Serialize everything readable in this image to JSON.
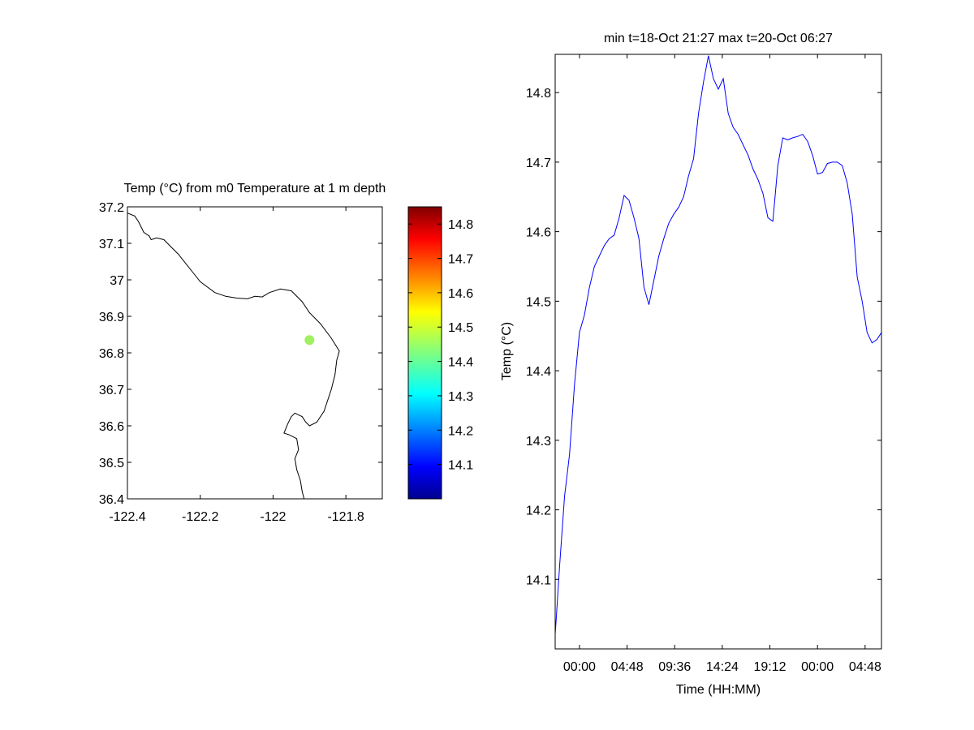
{
  "chart_data": [
    {
      "type": "map",
      "title": "Temp (°C) from m0 Temperature at 1 m depth",
      "xlabel": "",
      "ylabel": "",
      "xlim": [
        -122.4,
        -121.7
      ],
      "ylim": [
        36.4,
        37.2
      ],
      "x_ticks": [
        -122.4,
        -122.2,
        -122.0,
        -121.8
      ],
      "x_tick_labels": [
        "-122.4",
        "-122.2",
        "-122",
        "-121.8"
      ],
      "y_ticks": [
        36.4,
        36.5,
        36.6,
        36.7,
        36.8,
        36.9,
        37.0,
        37.1,
        37.2
      ],
      "y_tick_labels": [
        "36.4",
        "36.5",
        "36.6",
        "36.7",
        "36.8",
        "36.9",
        "37",
        "37.1",
        "37.2"
      ],
      "grid": false,
      "points": [
        {
          "lon": -121.9,
          "lat": 36.835,
          "value": 14.45,
          "color": "#a0f060"
        }
      ],
      "coastline": [
        [
          -122.4,
          37.183
        ],
        [
          -122.38,
          37.175
        ],
        [
          -122.37,
          37.16
        ],
        [
          -122.355,
          37.13
        ],
        [
          -122.34,
          37.12
        ],
        [
          -122.335,
          37.11
        ],
        [
          -122.32,
          37.115
        ],
        [
          -122.3,
          37.11
        ],
        [
          -122.28,
          37.09
        ],
        [
          -122.26,
          37.07
        ],
        [
          -122.24,
          37.045
        ],
        [
          -122.22,
          37.02
        ],
        [
          -122.2,
          36.995
        ],
        [
          -122.18,
          36.98
        ],
        [
          -122.16,
          36.965
        ],
        [
          -122.13,
          36.955
        ],
        [
          -122.1,
          36.95
        ],
        [
          -122.07,
          36.948
        ],
        [
          -122.05,
          36.955
        ],
        [
          -122.03,
          36.953
        ],
        [
          -122.01,
          36.965
        ],
        [
          -121.98,
          36.975
        ],
        [
          -121.95,
          36.97
        ],
        [
          -121.92,
          36.94
        ],
        [
          -121.9,
          36.91
        ],
        [
          -121.87,
          36.88
        ],
        [
          -121.84,
          36.84
        ],
        [
          -121.818,
          36.805
        ],
        [
          -121.825,
          36.78
        ],
        [
          -121.83,
          36.74
        ],
        [
          -121.84,
          36.7
        ],
        [
          -121.86,
          36.64
        ],
        [
          -121.88,
          36.61
        ],
        [
          -121.9,
          36.6
        ],
        [
          -121.91,
          36.61
        ],
        [
          -121.92,
          36.625
        ],
        [
          -121.94,
          36.635
        ],
        [
          -121.95,
          36.625
        ],
        [
          -121.96,
          36.605
        ],
        [
          -121.97,
          36.58
        ],
        [
          -121.955,
          36.575
        ],
        [
          -121.935,
          36.565
        ],
        [
          -121.93,
          36.535
        ],
        [
          -121.94,
          36.51
        ],
        [
          -121.935,
          36.48
        ],
        [
          -121.925,
          36.45
        ],
        [
          -121.92,
          36.42
        ],
        [
          -121.915,
          36.4
        ]
      ]
    },
    {
      "type": "colorbar",
      "min": 14.0,
      "max": 14.85,
      "ticks": [
        14.1,
        14.2,
        14.3,
        14.4,
        14.5,
        14.6,
        14.7,
        14.8
      ],
      "tick_labels": [
        "14.1",
        "14.2",
        "14.3",
        "14.4",
        "14.5",
        "14.6",
        "14.7",
        "14.8"
      ],
      "colormap": "jet"
    },
    {
      "type": "line",
      "title": "min t=18-Oct 21:27 max t=20-Oct 06:27",
      "xlabel": "Time (HH:MM)",
      "ylabel": "Temp (°C)",
      "x_unit": "hours from 19-Oct 00:00",
      "xlim": [
        -2.45,
        30.45
      ],
      "ylim": [
        14.0,
        14.855
      ],
      "x_ticks": [
        0,
        4.8,
        9.6,
        14.4,
        19.2,
        24,
        28.8
      ],
      "x_tick_labels": [
        "00:00",
        "04:48",
        "09:36",
        "14:24",
        "19:12",
        "00:00",
        "04:48"
      ],
      "y_ticks": [
        14.1,
        14.2,
        14.3,
        14.4,
        14.5,
        14.6,
        14.7,
        14.8
      ],
      "y_tick_labels": [
        "14.1",
        "14.2",
        "14.3",
        "14.4",
        "14.5",
        "14.6",
        "14.7",
        "14.8"
      ],
      "grid": false,
      "series": [
        {
          "name": "",
          "color": "#0000ff",
          "x": [
            -2.45,
            -2.0,
            -1.5,
            -1.0,
            -0.5,
            0.0,
            0.5,
            1.0,
            1.5,
            2.0,
            2.5,
            3.0,
            3.5,
            4.0,
            4.5,
            5.0,
            5.5,
            6.0,
            6.5,
            7.0,
            7.5,
            8.0,
            8.5,
            9.0,
            9.5,
            10.0,
            10.5,
            11.0,
            11.5,
            12.0,
            12.5,
            13.0,
            13.5,
            14.0,
            14.5,
            15.0,
            15.5,
            16.0,
            16.5,
            17.0,
            17.5,
            18.0,
            18.5,
            19.0,
            19.5,
            20.0,
            20.5,
            21.0,
            21.5,
            22.0,
            22.5,
            23.0,
            23.5,
            24.0,
            24.5,
            25.0,
            25.5,
            26.0,
            26.5,
            27.0,
            27.5,
            28.0,
            28.5,
            29.0,
            29.5,
            30.0,
            30.45
          ],
          "y": [
            14.02,
            14.12,
            14.22,
            14.28,
            14.38,
            14.455,
            14.48,
            14.52,
            14.55,
            14.565,
            14.58,
            14.59,
            14.595,
            14.62,
            14.652,
            14.645,
            14.62,
            14.59,
            14.52,
            14.495,
            14.53,
            14.565,
            14.59,
            14.612,
            14.625,
            14.635,
            14.65,
            14.68,
            14.705,
            14.77,
            14.815,
            14.853,
            14.82,
            14.805,
            14.82,
            14.77,
            14.75,
            14.74,
            14.725,
            14.71,
            14.69,
            14.675,
            14.655,
            14.62,
            14.615,
            14.695,
            14.735,
            14.732,
            14.735,
            14.737,
            14.74,
            14.73,
            14.71,
            14.683,
            14.685,
            14.698,
            14.7,
            14.7,
            14.695,
            14.67,
            14.625,
            14.535,
            14.5,
            14.455,
            14.44,
            14.445,
            14.455
          ]
        }
      ]
    }
  ]
}
